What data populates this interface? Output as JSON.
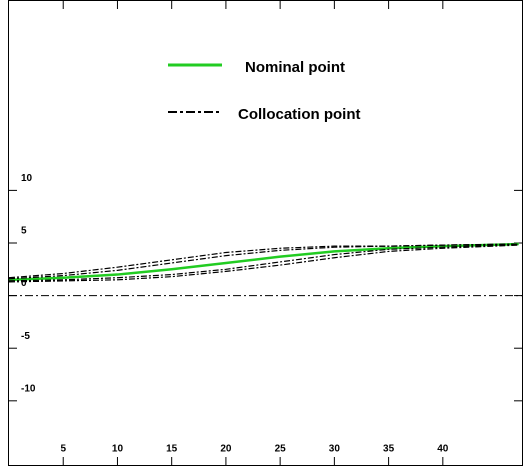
{
  "chart_data": {
    "type": "line",
    "x": [
      0,
      5,
      10,
      15,
      20,
      25,
      30,
      35,
      40,
      47
    ],
    "series": [
      {
        "name": "Nominal point",
        "color": "#22cc22",
        "style": "solid",
        "values": [
          1.5,
          1.7,
          2.0,
          2.5,
          3.1,
          3.7,
          4.2,
          4.5,
          4.7,
          4.9
        ]
      },
      {
        "name": "Collocation point",
        "color": "#000000",
        "style": "dashdot",
        "values": [
          1.7,
          2.1,
          2.7,
          3.4,
          4.1,
          4.5,
          4.7,
          4.7,
          4.8,
          4.9
        ]
      },
      {
        "color": "#000000",
        "style": "dashdot",
        "values": [
          1.6,
          1.9,
          2.4,
          3.1,
          3.8,
          4.3,
          4.6,
          4.7,
          4.8,
          4.9
        ]
      },
      {
        "color": "#000000",
        "style": "dashdot",
        "values": [
          1.4,
          1.5,
          1.7,
          2.0,
          2.5,
          3.2,
          3.9,
          4.4,
          4.6,
          4.9
        ]
      },
      {
        "color": "#000000",
        "style": "dashdot",
        "values": [
          1.3,
          1.4,
          1.5,
          1.8,
          2.3,
          2.9,
          3.6,
          4.2,
          4.5,
          4.8
        ]
      }
    ],
    "reference_line": 0,
    "xlim": [
      0,
      47.3
    ],
    "ylim": [
      -16.1,
      28
    ],
    "xticks": [
      5,
      10,
      15,
      20,
      25,
      30,
      35,
      40
    ],
    "yticks": [
      -10,
      -5,
      0,
      5,
      10
    ]
  }
}
